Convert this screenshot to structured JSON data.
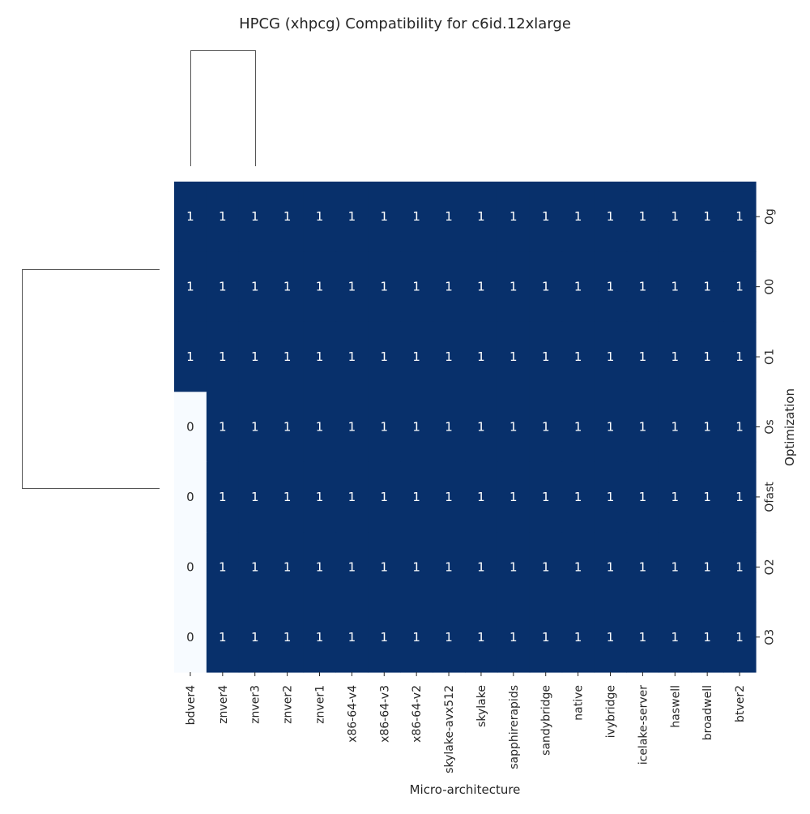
{
  "chart_data": {
    "type": "heatmap",
    "title": "HPCG (xhpcg) Compatibility for c6id.12xlarge",
    "xlabel": "Micro-architecture",
    "ylabel": "Optimization",
    "x_categories": [
      "bdver4",
      "znver4",
      "znver3",
      "znver2",
      "znver1",
      "x86-64-v4",
      "x86-64-v3",
      "x86-64-v2",
      "skylake-avx512",
      "skylake",
      "sapphirerapids",
      "sandybridge",
      "native",
      "ivybridge",
      "icelake-server",
      "haswell",
      "broadwell",
      "btver2"
    ],
    "y_categories": [
      "Og",
      "O0",
      "O1",
      "Os",
      "Ofast",
      "O2",
      "O3"
    ],
    "values": [
      [
        1,
        1,
        1,
        1,
        1,
        1,
        1,
        1,
        1,
        1,
        1,
        1,
        1,
        1,
        1,
        1,
        1,
        1
      ],
      [
        1,
        1,
        1,
        1,
        1,
        1,
        1,
        1,
        1,
        1,
        1,
        1,
        1,
        1,
        1,
        1,
        1,
        1
      ],
      [
        1,
        1,
        1,
        1,
        1,
        1,
        1,
        1,
        1,
        1,
        1,
        1,
        1,
        1,
        1,
        1,
        1,
        1
      ],
      [
        0,
        1,
        1,
        1,
        1,
        1,
        1,
        1,
        1,
        1,
        1,
        1,
        1,
        1,
        1,
        1,
        1,
        1
      ],
      [
        0,
        1,
        1,
        1,
        1,
        1,
        1,
        1,
        1,
        1,
        1,
        1,
        1,
        1,
        1,
        1,
        1,
        1
      ],
      [
        0,
        1,
        1,
        1,
        1,
        1,
        1,
        1,
        1,
        1,
        1,
        1,
        1,
        1,
        1,
        1,
        1,
        1
      ],
      [
        0,
        1,
        1,
        1,
        1,
        1,
        1,
        1,
        1,
        1,
        1,
        1,
        1,
        1,
        1,
        1,
        1,
        1
      ]
    ],
    "colormap": "Blues",
    "color_low": "#f7fbff",
    "color_high": "#08306b",
    "annotated": true,
    "row_dendrogram": true,
    "col_dendrogram": true,
    "colorbar": false
  }
}
